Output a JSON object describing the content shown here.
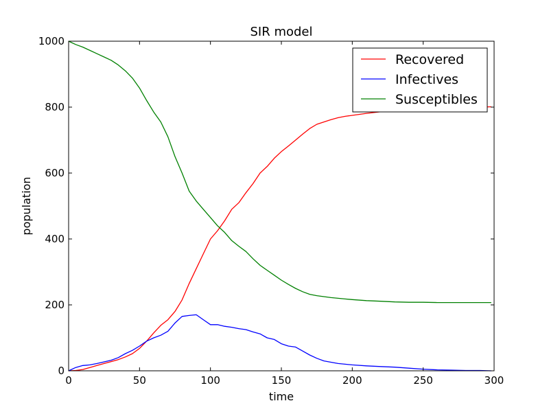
{
  "chart_data": {
    "type": "line",
    "title": "SIR model",
    "xlabel": "time",
    "ylabel": "population",
    "xlim": [
      0,
      300
    ],
    "ylim": [
      0,
      1000
    ],
    "xticks": [
      0,
      50,
      100,
      150,
      200,
      250,
      300
    ],
    "yticks": [
      0,
      200,
      400,
      600,
      800,
      1000
    ],
    "grid": false,
    "legend_position": "top-right",
    "series": [
      {
        "name": "Recovered",
        "color": "#ff0000",
        "x": [
          0,
          5,
          10,
          15,
          20,
          25,
          30,
          35,
          40,
          45,
          50,
          55,
          60,
          65,
          70,
          75,
          80,
          85,
          90,
          95,
          100,
          105,
          110,
          115,
          120,
          125,
          130,
          135,
          140,
          145,
          150,
          155,
          160,
          165,
          170,
          175,
          180,
          185,
          190,
          195,
          200,
          210,
          220,
          230,
          240,
          250,
          260,
          270,
          280,
          290,
          298
        ],
        "values": [
          0,
          1,
          4,
          10,
          16,
          22,
          28,
          34,
          42,
          52,
          68,
          90,
          115,
          138,
          155,
          180,
          215,
          265,
          310,
          355,
          400,
          425,
          455,
          490,
          510,
          540,
          568,
          600,
          620,
          645,
          665,
          682,
          700,
          718,
          735,
          748,
          755,
          762,
          768,
          772,
          775,
          781,
          786,
          790,
          793,
          795,
          797,
          798,
          799,
          800,
          801
        ]
      },
      {
        "name": "Infectives",
        "color": "#0000ff",
        "x": [
          0,
          5,
          10,
          15,
          20,
          25,
          30,
          35,
          40,
          45,
          50,
          55,
          60,
          65,
          70,
          75,
          80,
          85,
          90,
          95,
          100,
          105,
          110,
          115,
          120,
          125,
          130,
          135,
          140,
          145,
          150,
          155,
          160,
          165,
          170,
          175,
          180,
          185,
          190,
          195,
          200,
          210,
          220,
          230,
          240,
          250,
          260,
          270,
          280,
          290,
          298
        ],
        "values": [
          0,
          10,
          16,
          18,
          22,
          27,
          32,
          40,
          52,
          62,
          75,
          90,
          100,
          108,
          120,
          145,
          165,
          168,
          170,
          155,
          140,
          140,
          135,
          132,
          128,
          125,
          118,
          112,
          100,
          95,
          82,
          75,
          72,
          60,
          48,
          38,
          30,
          26,
          22,
          20,
          18,
          15,
          13,
          11,
          8,
          5,
          3,
          2,
          1,
          1,
          0
        ]
      },
      {
        "name": "Susceptibles",
        "color": "#008000",
        "x": [
          0,
          5,
          10,
          15,
          20,
          25,
          30,
          35,
          40,
          45,
          50,
          55,
          60,
          65,
          70,
          75,
          80,
          85,
          90,
          95,
          100,
          105,
          110,
          115,
          120,
          125,
          130,
          135,
          140,
          145,
          150,
          155,
          160,
          165,
          170,
          175,
          180,
          185,
          190,
          195,
          200,
          210,
          220,
          230,
          240,
          250,
          260,
          270,
          280,
          290,
          298
        ],
        "values": [
          1000,
          990,
          982,
          972,
          962,
          952,
          942,
          928,
          910,
          888,
          858,
          820,
          785,
          755,
          710,
          650,
          600,
          545,
          515,
          490,
          465,
          440,
          420,
          395,
          378,
          362,
          340,
          320,
          305,
          290,
          275,
          262,
          250,
          240,
          232,
          228,
          225,
          222,
          220,
          218,
          216,
          213,
          211,
          209,
          208,
          208,
          207,
          207,
          207,
          207,
          207
        ]
      }
    ]
  }
}
